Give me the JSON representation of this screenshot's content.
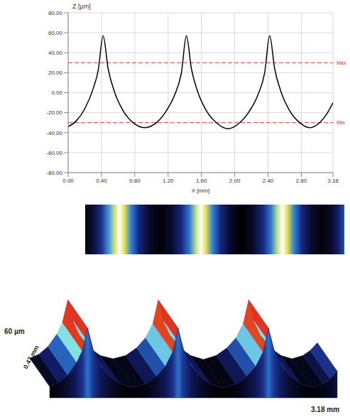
{
  "chart_data": {
    "type": "line",
    "x_label": "X [mm]",
    "y_label": "Z [µm]",
    "x": [
      0.0,
      0.1,
      0.2,
      0.3,
      0.36,
      0.42,
      0.48,
      0.56,
      0.66,
      0.78,
      0.92,
      1.06,
      1.18,
      1.28,
      1.36,
      1.42,
      1.48,
      1.56,
      1.66,
      1.78,
      1.92,
      2.06,
      2.18,
      2.28,
      2.36,
      2.42,
      2.48,
      2.56,
      2.66,
      2.78,
      2.9,
      3.02,
      3.1,
      3.18
    ],
    "values": [
      -34,
      -28,
      -16,
      4,
      22,
      57,
      24,
      0,
      -18,
      -30,
      -35,
      -30,
      -18,
      -2,
      20,
      57,
      24,
      0,
      -18,
      -30,
      -36,
      -30,
      -18,
      -2,
      20,
      57,
      24,
      0,
      -18,
      -30,
      -35,
      -30,
      -22,
      -10
    ],
    "color": "#000000",
    "xlim": [
      0,
      3.18
    ],
    "xticks": [
      {
        "value": 0,
        "label": "0.00"
      },
      {
        "value": 0.4,
        "label": "0.40"
      },
      {
        "value": 0.8,
        "label": "0.80"
      },
      {
        "value": 1.2,
        "label": "1.20"
      },
      {
        "value": 1.6,
        "label": "1.60"
      },
      {
        "value": 2.0,
        "label": "2.00"
      },
      {
        "value": 2.4,
        "label": "2.40"
      },
      {
        "value": 2.8,
        "label": "2.80"
      },
      {
        "value": 3.18,
        "label": "3.18"
      }
    ],
    "ylim": [
      -80,
      80
    ],
    "yticks": [
      {
        "value": -80,
        "label": "-80.00"
      },
      {
        "value": -60,
        "label": "-60.00"
      },
      {
        "value": -40,
        "label": "-40.00"
      },
      {
        "value": -20,
        "label": "-20.00"
      },
      {
        "value": 0,
        "label": "0.00"
      },
      {
        "value": 20,
        "label": "20.00"
      },
      {
        "value": 40,
        "label": "40.00"
      },
      {
        "value": 60,
        "label": "60.00"
      },
      {
        "value": 80,
        "label": "80.00"
      }
    ],
    "grid": true,
    "annotations": [
      {
        "y": 30,
        "label": "Max",
        "color": "#e03030"
      },
      {
        "y": -30,
        "label": "Min",
        "color": "#e03030"
      }
    ]
  },
  "view3d": {
    "height_label": "60 µm",
    "depth_label": "0.47 mm",
    "length_label": "3.18 mm"
  }
}
